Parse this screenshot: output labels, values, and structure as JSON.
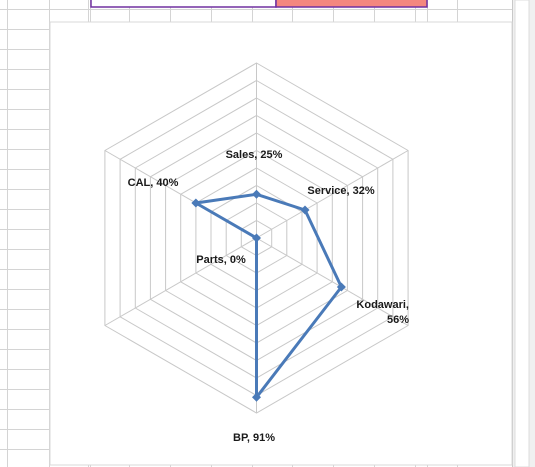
{
  "colors": {
    "gridline": "#d4d4d4",
    "sheet_background": "#ffffff",
    "chart_border": "#d9d9d9",
    "scrollbar": "#f0f0f0",
    "top_shape_border": "#7030a0",
    "top_shape_fill": "#f4877f",
    "radar_line": "#4a7ab8",
    "radar_grid": "#c8c8c8"
  },
  "chart_data": {
    "type": "radar",
    "title": "",
    "categories": [
      "Sales",
      "Service",
      "Kodawari",
      "BP",
      "Parts",
      "CAL"
    ],
    "series": [
      {
        "values": [
          25,
          32,
          56,
          91,
          0,
          40
        ],
        "color": "#4a7ab8"
      }
    ],
    "labels": [
      [
        "Sales, 25%"
      ],
      [
        "Service, 32%"
      ],
      [
        "Kodawari,",
        "56%"
      ],
      [
        "BP, 91%"
      ],
      [
        "Parts, 0%"
      ],
      [
        "CAL, 40%"
      ]
    ],
    "rlim": [
      0,
      100
    ],
    "grid_rings": 10,
    "marker": "diamond",
    "legend": "none"
  }
}
